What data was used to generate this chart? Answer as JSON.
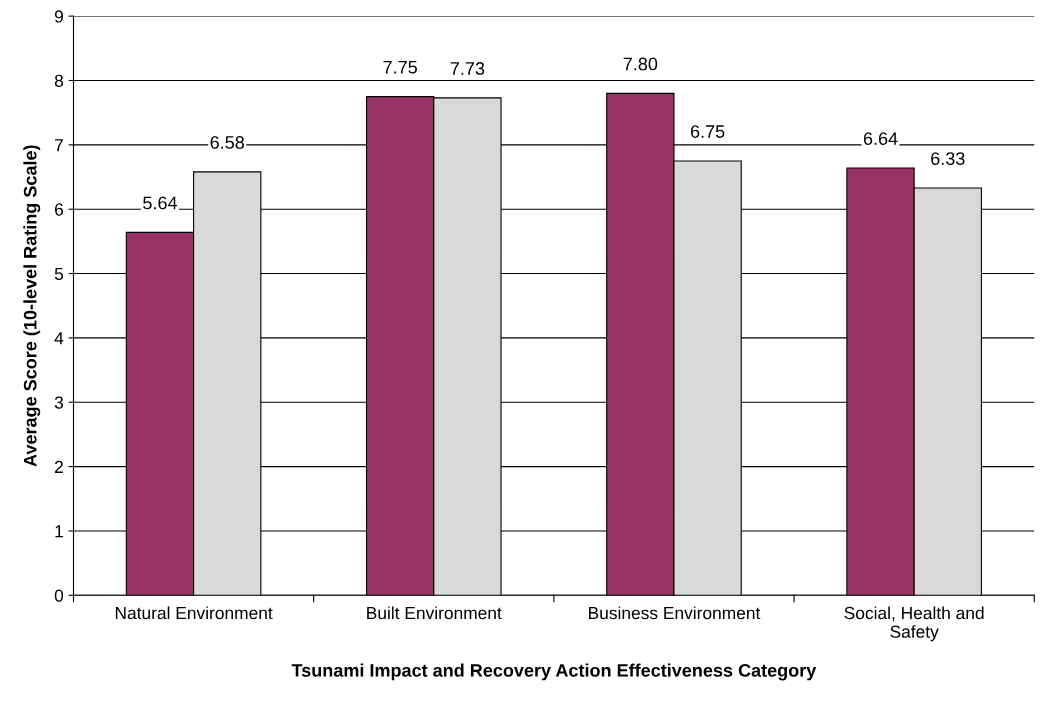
{
  "chart_data": {
    "type": "bar",
    "xlabel": "Tsunami Impact and Recovery Action Effectiveness Category",
    "ylabel": "Average Score (10-level Rating Scale)",
    "categories": [
      "Natural Environment",
      "Built Environment",
      "Business Environment",
      "Social, Health and\nSafety"
    ],
    "series": [
      {
        "color": "#993366",
        "values": [
          5.64,
          7.75,
          7.8,
          6.64
        ],
        "value_labels": [
          "5.64",
          "7.75",
          "7.80",
          "6.64"
        ]
      },
      {
        "color": "#d9d9d9",
        "values": [
          6.58,
          7.73,
          6.75,
          6.33
        ],
        "value_labels": [
          "6.58",
          "7.73",
          "6.75",
          "6.33"
        ]
      }
    ],
    "ylim": [
      0,
      9
    ],
    "yticks": [
      0,
      1,
      2,
      3,
      4,
      5,
      6,
      7,
      8,
      9
    ],
    "grid": "y"
  }
}
